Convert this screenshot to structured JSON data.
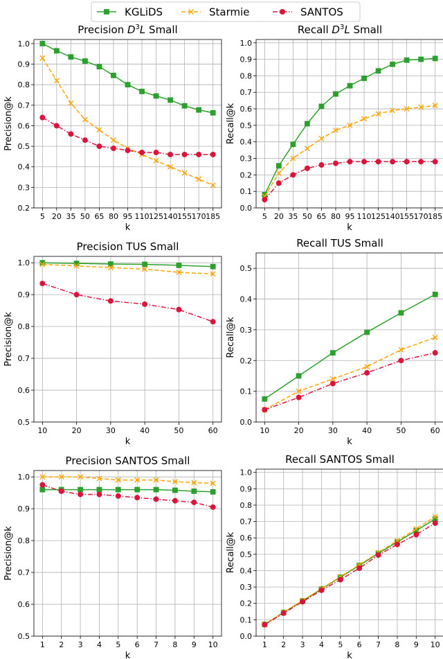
{
  "legend": [
    {
      "name": "KGLiDS",
      "color": "#2ca02c",
      "marker": "square",
      "dash": "solid"
    },
    {
      "name": "Starmie",
      "color": "#ffa500",
      "marker": "x",
      "dash": "dashed"
    },
    {
      "name": "SANTOS",
      "color": "#dc143c",
      "marker": "circle",
      "dash": "dashdot"
    }
  ],
  "chart_data": [
    {
      "type": "line",
      "title_prefix": "Precision ",
      "title_math": "D",
      "title_sup": "3",
      "title_after": "L",
      "title_suffix": " Small",
      "xlabel": "k",
      "ylabel": "Precision@k",
      "x": [
        5,
        20,
        35,
        50,
        65,
        80,
        95,
        110,
        125,
        140,
        155,
        170,
        185
      ],
      "xticks": [
        "5",
        "20",
        "35",
        "50",
        "65",
        "80",
        "95",
        "110",
        "125",
        "140",
        "155",
        "170",
        "185"
      ],
      "xlim": [
        -4,
        194
      ],
      "ylim": [
        0.2,
        1.02
      ],
      "yticks": [
        "0.2",
        "0.3",
        "0.4",
        "0.5",
        "0.6",
        "0.7",
        "0.8",
        "0.9",
        "1.0"
      ],
      "grid": true,
      "series": [
        {
          "name": "KGLiDS",
          "values": [
            1.0,
            0.965,
            0.935,
            0.915,
            0.888,
            0.845,
            0.8,
            0.767,
            0.745,
            0.725,
            0.697,
            0.677,
            0.663
          ]
        },
        {
          "name": "Starmie",
          "values": [
            0.93,
            0.82,
            0.71,
            0.63,
            0.58,
            0.53,
            0.49,
            0.46,
            0.43,
            0.4,
            0.37,
            0.34,
            0.31
          ]
        },
        {
          "name": "SANTOS",
          "values": [
            0.64,
            0.6,
            0.56,
            0.53,
            0.5,
            0.49,
            0.48,
            0.47,
            0.47,
            0.46,
            0.46,
            0.46,
            0.46
          ]
        }
      ]
    },
    {
      "type": "line",
      "title_prefix": "Recall ",
      "title_math": "D",
      "title_sup": "3",
      "title_after": "L",
      "title_suffix": " Small",
      "xlabel": "k",
      "ylabel": "Recall@k",
      "x": [
        5,
        20,
        35,
        50,
        65,
        80,
        95,
        110,
        125,
        140,
        155,
        170,
        185
      ],
      "xticks": [
        "5",
        "20",
        "35",
        "50",
        "65",
        "80",
        "95",
        "110",
        "125",
        "140",
        "155",
        "170",
        "185"
      ],
      "xlim": [
        -4,
        194
      ],
      "ylim": [
        0.0,
        1.02
      ],
      "yticks": [
        "0.0",
        "0.1",
        "0.2",
        "0.3",
        "0.4",
        "0.5",
        "0.6",
        "0.7",
        "0.8",
        "0.9",
        "1.0"
      ],
      "grid": true,
      "series": [
        {
          "name": "KGLiDS",
          "values": [
            0.08,
            0.255,
            0.385,
            0.51,
            0.615,
            0.69,
            0.74,
            0.785,
            0.83,
            0.87,
            0.895,
            0.9,
            0.905
          ]
        },
        {
          "name": "Starmie",
          "values": [
            0.07,
            0.21,
            0.3,
            0.36,
            0.42,
            0.47,
            0.5,
            0.54,
            0.57,
            0.59,
            0.6,
            0.61,
            0.62
          ]
        },
        {
          "name": "SANTOS",
          "values": [
            0.05,
            0.15,
            0.2,
            0.24,
            0.26,
            0.27,
            0.28,
            0.28,
            0.28,
            0.28,
            0.28,
            0.28,
            0.28
          ]
        }
      ]
    },
    {
      "type": "line",
      "title_prefix": "Precision TUS Small",
      "xlabel": "k",
      "ylabel": "Precision@k",
      "x": [
        10,
        20,
        30,
        40,
        50,
        60
      ],
      "xticks": [
        "10",
        "20",
        "30",
        "40",
        "50",
        "60"
      ],
      "xlim": [
        7.5,
        62.5
      ],
      "ylim": [
        0.5,
        1.02
      ],
      "yticks": [
        "0.5",
        "0.6",
        "0.7",
        "0.8",
        "0.9",
        "1.0"
      ],
      "grid": true,
      "series": [
        {
          "name": "KGLiDS",
          "values": [
            1.0,
            0.998,
            0.996,
            0.995,
            0.992,
            0.988
          ]
        },
        {
          "name": "Starmie",
          "values": [
            0.995,
            0.99,
            0.985,
            0.98,
            0.97,
            0.965
          ]
        },
        {
          "name": "SANTOS",
          "values": [
            0.935,
            0.9,
            0.88,
            0.87,
            0.853,
            0.815
          ]
        }
      ]
    },
    {
      "type": "line",
      "title_prefix": "Recall TUS Small",
      "xlabel": "k",
      "ylabel": "Recall@k",
      "x": [
        10,
        20,
        30,
        40,
        50,
        60
      ],
      "xticks": [
        "10",
        "20",
        "30",
        "40",
        "50",
        "60"
      ],
      "xlim": [
        7.5,
        62.5
      ],
      "ylim": [
        0.0,
        0.55
      ],
      "yticks": [
        "0.0",
        "0.1",
        "0.2",
        "0.3",
        "0.4",
        "0.5"
      ],
      "grid": true,
      "series": [
        {
          "name": "KGLiDS",
          "values": [
            0.075,
            0.15,
            0.225,
            0.292,
            0.355,
            0.415
          ]
        },
        {
          "name": "Starmie",
          "values": [
            0.04,
            0.1,
            0.14,
            0.18,
            0.235,
            0.275
          ]
        },
        {
          "name": "SANTOS",
          "values": [
            0.04,
            0.08,
            0.125,
            0.16,
            0.2,
            0.225
          ]
        }
      ]
    },
    {
      "type": "line",
      "title_prefix": "Precision SANTOS Small",
      "xlabel": "k",
      "ylabel": "Precision@k",
      "x": [
        1,
        2,
        3,
        4,
        5,
        6,
        7,
        8,
        9,
        10
      ],
      "xticks": [
        "1",
        "2",
        "3",
        "4",
        "5",
        "6",
        "7",
        "8",
        "9",
        "10"
      ],
      "xlim": [
        0.55,
        10.45
      ],
      "ylim": [
        0.5,
        1.02
      ],
      "yticks": [
        "0.5",
        "0.6",
        "0.7",
        "0.8",
        "0.9",
        "1.0"
      ],
      "grid": true,
      "series": [
        {
          "name": "KGLiDS",
          "values": [
            0.96,
            0.96,
            0.96,
            0.96,
            0.96,
            0.96,
            0.96,
            0.958,
            0.955,
            0.953
          ]
        },
        {
          "name": "Starmie",
          "values": [
            1.0,
            1.0,
            1.0,
            0.995,
            0.99,
            0.99,
            0.99,
            0.985,
            0.982,
            0.98
          ]
        },
        {
          "name": "SANTOS",
          "values": [
            0.975,
            0.955,
            0.945,
            0.945,
            0.94,
            0.935,
            0.93,
            0.925,
            0.92,
            0.905
          ]
        }
      ]
    },
    {
      "type": "line",
      "title_prefix": "Recall SANTOS Small",
      "xlabel": "k",
      "ylabel": "Recall@k",
      "x": [
        1,
        2,
        3,
        4,
        5,
        6,
        7,
        8,
        9,
        10
      ],
      "xticks": [
        "1",
        "2",
        "3",
        "4",
        "5",
        "6",
        "7",
        "8",
        "9",
        "10"
      ],
      "xlim": [
        0.55,
        10.45
      ],
      "ylim": [
        0.0,
        1.02
      ],
      "yticks": [
        "0.0",
        "0.1",
        "0.2",
        "0.3",
        "0.4",
        "0.5",
        "0.6",
        "0.7",
        "0.8",
        "0.9",
        "1.0"
      ],
      "grid": true,
      "series": [
        {
          "name": "KGLiDS",
          "values": [
            0.072,
            0.145,
            0.215,
            0.288,
            0.36,
            0.432,
            0.505,
            0.575,
            0.645,
            0.715
          ]
        },
        {
          "name": "Starmie",
          "values": [
            0.072,
            0.145,
            0.218,
            0.29,
            0.363,
            0.436,
            0.51,
            0.583,
            0.655,
            0.73
          ]
        },
        {
          "name": "SANTOS",
          "values": [
            0.07,
            0.14,
            0.21,
            0.28,
            0.345,
            0.415,
            0.495,
            0.56,
            0.62,
            0.69
          ]
        }
      ]
    }
  ]
}
